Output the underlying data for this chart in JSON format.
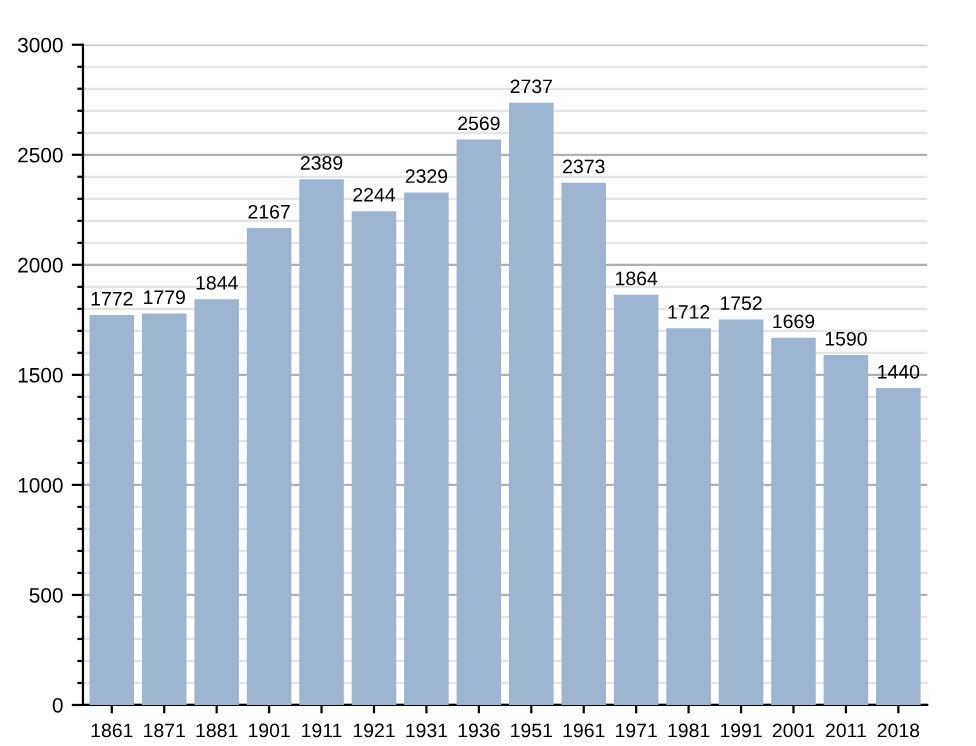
{
  "chart_data": {
    "type": "bar",
    "categories": [
      "1861",
      "1871",
      "1881",
      "1901",
      "1911",
      "1921",
      "1931",
      "1936",
      "1951",
      "1961",
      "1971",
      "1981",
      "1991",
      "2001",
      "2011",
      "2018"
    ],
    "values": [
      1772,
      1779,
      1844,
      2167,
      2389,
      2244,
      2329,
      2569,
      2737,
      2373,
      1864,
      1712,
      1752,
      1669,
      1590,
      1440
    ],
    "color": "#9db5d0",
    "data_labels": true,
    "grid": "y",
    "ylim": [
      0,
      3000
    ],
    "yticks": [
      0,
      {
        "value": 100,
        "label": null
      },
      {
        "value": 200,
        "label": null
      },
      {
        "value": 300,
        "label": null
      },
      {
        "value": 400,
        "label": null
      },
      500,
      {
        "value": 600,
        "label": null
      },
      {
        "value": 700,
        "label": null
      },
      {
        "value": 800,
        "label": null
      },
      {
        "value": 900,
        "label": null
      },
      1000,
      {
        "value": 1100,
        "label": null
      },
      {
        "value": 1200,
        "label": null
      },
      {
        "value": 1300,
        "label": null
      },
      {
        "value": 1400,
        "label": null
      },
      1500,
      {
        "value": 1600,
        "label": null
      },
      {
        "value": 1700,
        "label": null
      },
      {
        "value": 1800,
        "label": null
      },
      {
        "value": 1900,
        "label": null
      },
      2000,
      {
        "value": 2100,
        "label": null
      },
      {
        "value": 2200,
        "label": null
      },
      {
        "value": 2300,
        "label": null
      },
      {
        "value": 2400,
        "label": null
      },
      2500,
      {
        "value": 2600,
        "label": null
      },
      {
        "value": 2700,
        "label": null
      },
      {
        "value": 2800,
        "label": null
      },
      {
        "value": 2900,
        "label": null
      },
      3000
    ]
  }
}
